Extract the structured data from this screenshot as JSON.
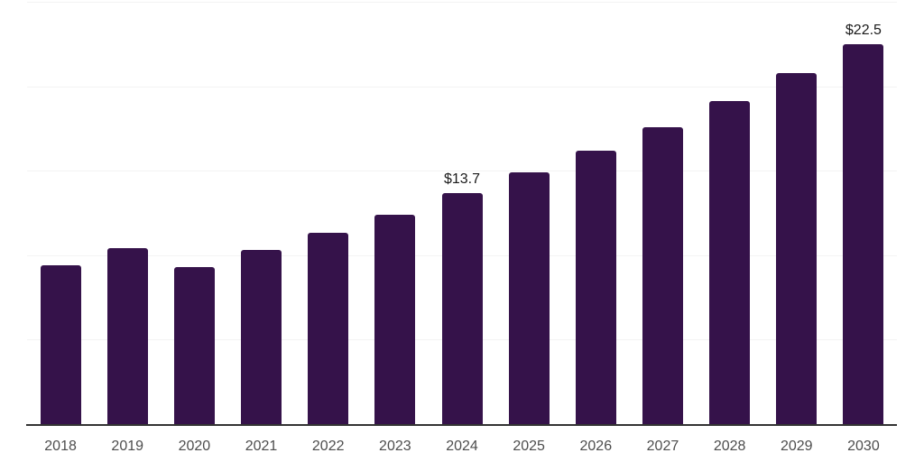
{
  "chart_data": {
    "type": "bar",
    "title": "",
    "xlabel": "",
    "ylabel": "",
    "categories": [
      "2018",
      "2019",
      "2020",
      "2021",
      "2022",
      "2023",
      "2024",
      "2025",
      "2026",
      "2027",
      "2028",
      "2029",
      "2030"
    ],
    "values": [
      9.4,
      10.4,
      9.3,
      10.3,
      11.3,
      12.4,
      13.7,
      14.9,
      16.2,
      17.6,
      19.1,
      20.8,
      22.5
    ],
    "data_labels": [
      "",
      "",
      "",
      "",
      "",
      "",
      "$13.7",
      "",
      "",
      "",
      "",
      "",
      "$22.5"
    ],
    "ylim": [
      0,
      25
    ],
    "grid": "horizontal",
    "gridline_values": [
      5,
      10,
      15,
      20,
      25
    ],
    "legend_position": "none",
    "y_axis_tick_labels_visible": false,
    "colors": {
      "bar": "#35124a",
      "gridline": "#f3f3f3",
      "axis_line": "#333333",
      "x_tick_label": "#4d4d4d",
      "data_label": "#1a1a1a",
      "background": "#ffffff"
    }
  }
}
